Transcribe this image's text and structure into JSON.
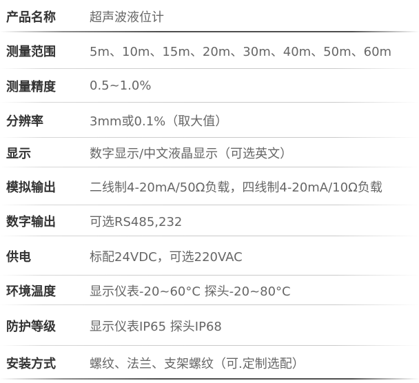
{
  "table": {
    "name": "product-spec-table",
    "columns": [
      "parameter",
      "specification"
    ],
    "rows": [
      {
        "label": "产品名称",
        "value": "超声波液位计"
      },
      {
        "label": "测量范围",
        "value": "5m、10m、15m、20m、30m、40m、50m、60m"
      },
      {
        "label": "测量精度",
        "value": "0.5~1.0%"
      },
      {
        "label": "分辨率",
        "value": "3mm或0.1%（取大值）"
      },
      {
        "label": "显示",
        "value": "数字显示/中文液晶显示（可选英文）"
      },
      {
        "label": "模拟输出",
        "value": "二线制4-20mA/50Ω负载，四线制4-20mA/10Ω负载"
      },
      {
        "label": "数字输出",
        "value": "可选RS485,232"
      },
      {
        "label": "供电",
        "value": "标配24VDC，可选220VAC"
      },
      {
        "label": "环境温度",
        "value": "显示仪表-20~60°C 探头-20~80°C"
      },
      {
        "label": "防护等级",
        "value": "显示仪表IP65 探头IP68"
      },
      {
        "label": "安装方式",
        "value": "螺纹、法兰、支架螺纹（可.定制选配）"
      }
    ]
  },
  "colors": {
    "background": "#ffffff",
    "label_text": "#333333",
    "value_text": "#666666",
    "separator_light": "#c9c9c9",
    "separator_dark": "#4d4d4d"
  }
}
